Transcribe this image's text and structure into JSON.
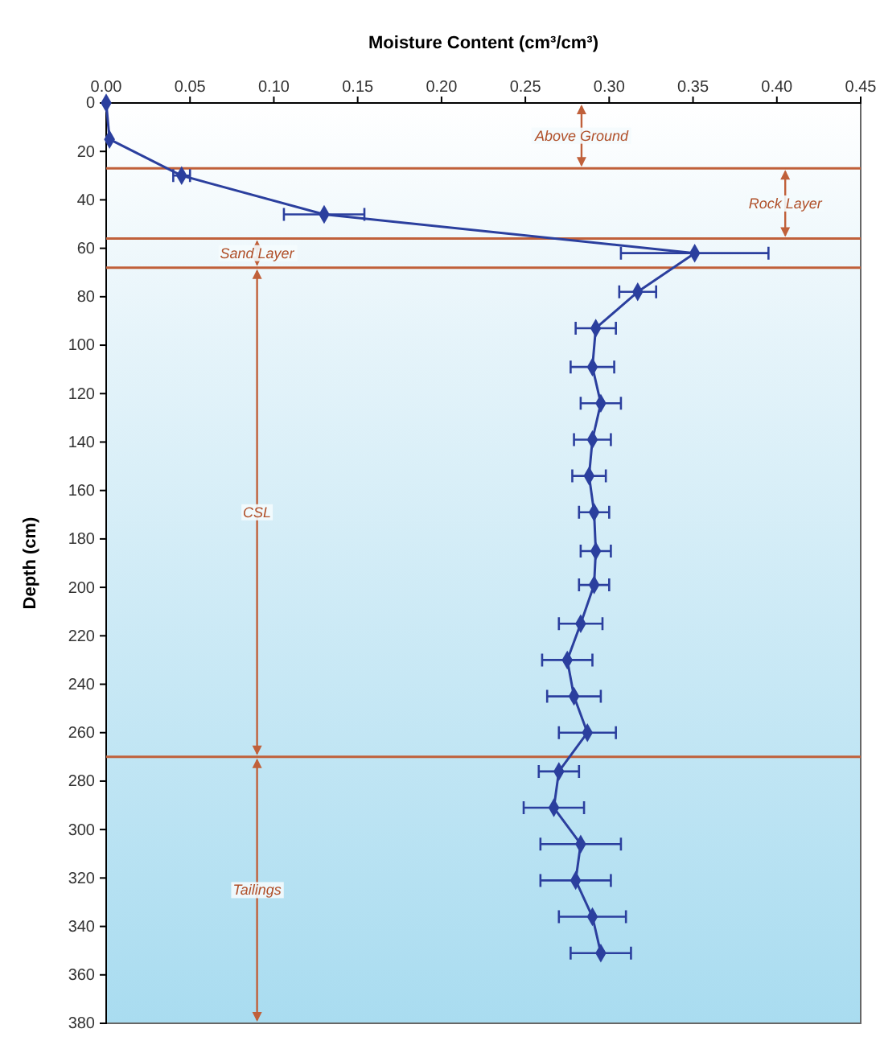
{
  "chart_data": {
    "type": "line",
    "xlabel": "Moisture Content (cm³/cm³)",
    "ylabel": "Depth (cm)",
    "xlim": [
      0,
      0.45
    ],
    "xticks": [
      {
        "value": 0,
        "label": "0.00"
      },
      {
        "value": 0.05,
        "label": "0.05"
      },
      {
        "value": 0.1,
        "label": "0.10"
      },
      {
        "value": 0.15,
        "label": "0.15"
      },
      {
        "value": 0.2,
        "label": "0.20"
      },
      {
        "value": 0.25,
        "label": "0.25"
      },
      {
        "value": 0.3,
        "label": "0.30"
      },
      {
        "value": 0.35,
        "label": "0.35"
      },
      {
        "value": 0.4,
        "label": "0.40"
      },
      {
        "value": 0.45,
        "label": "0.45"
      }
    ],
    "ylim": [
      380,
      0
    ],
    "yticks": [
      0,
      20,
      40,
      60,
      80,
      100,
      120,
      140,
      160,
      180,
      200,
      220,
      240,
      260,
      280,
      300,
      320,
      340,
      360,
      380
    ],
    "marker": "diamond",
    "line_style": "solid",
    "grid": false,
    "series": [
      {
        "color": "#2b3f9e",
        "x": [
          0,
          0.002,
          0.045,
          0.13,
          0.351,
          0.317,
          0.292,
          0.29,
          0.295,
          0.29,
          0.288,
          0.291,
          0.292,
          0.291,
          0.283,
          0.275,
          0.279,
          0.287,
          0.27,
          0.267,
          0.283,
          0.28,
          0.29,
          0.295
        ],
        "values": [
          0,
          15,
          30,
          46,
          62,
          78,
          93,
          109,
          124,
          139,
          154,
          169,
          185,
          199,
          215,
          230,
          245,
          260,
          276,
          291,
          306,
          321,
          336,
          351
        ],
        "xerrors": [
          null,
          null,
          0.005,
          0.024,
          0.044,
          0.011,
          0.012,
          0.013,
          0.012,
          0.011,
          0.01,
          0.009,
          0.009,
          0.009,
          0.013,
          0.015,
          0.016,
          0.017,
          0.012,
          0.018,
          0.024,
          0.021,
          0.02,
          0.018
        ]
      }
    ],
    "ref_lines": [
      {
        "axis": "y",
        "value": 27,
        "color": "#c0603a"
      },
      {
        "axis": "y",
        "value": 56,
        "color": "#c0603a"
      },
      {
        "axis": "y",
        "value": 68,
        "color": "#c0603a"
      },
      {
        "axis": "y",
        "value": 270,
        "color": "#c0603a"
      }
    ],
    "annotations": [
      "Above Ground",
      "Rock Layer",
      "Sand Layer",
      "CSL",
      "Tailings"
    ]
  }
}
